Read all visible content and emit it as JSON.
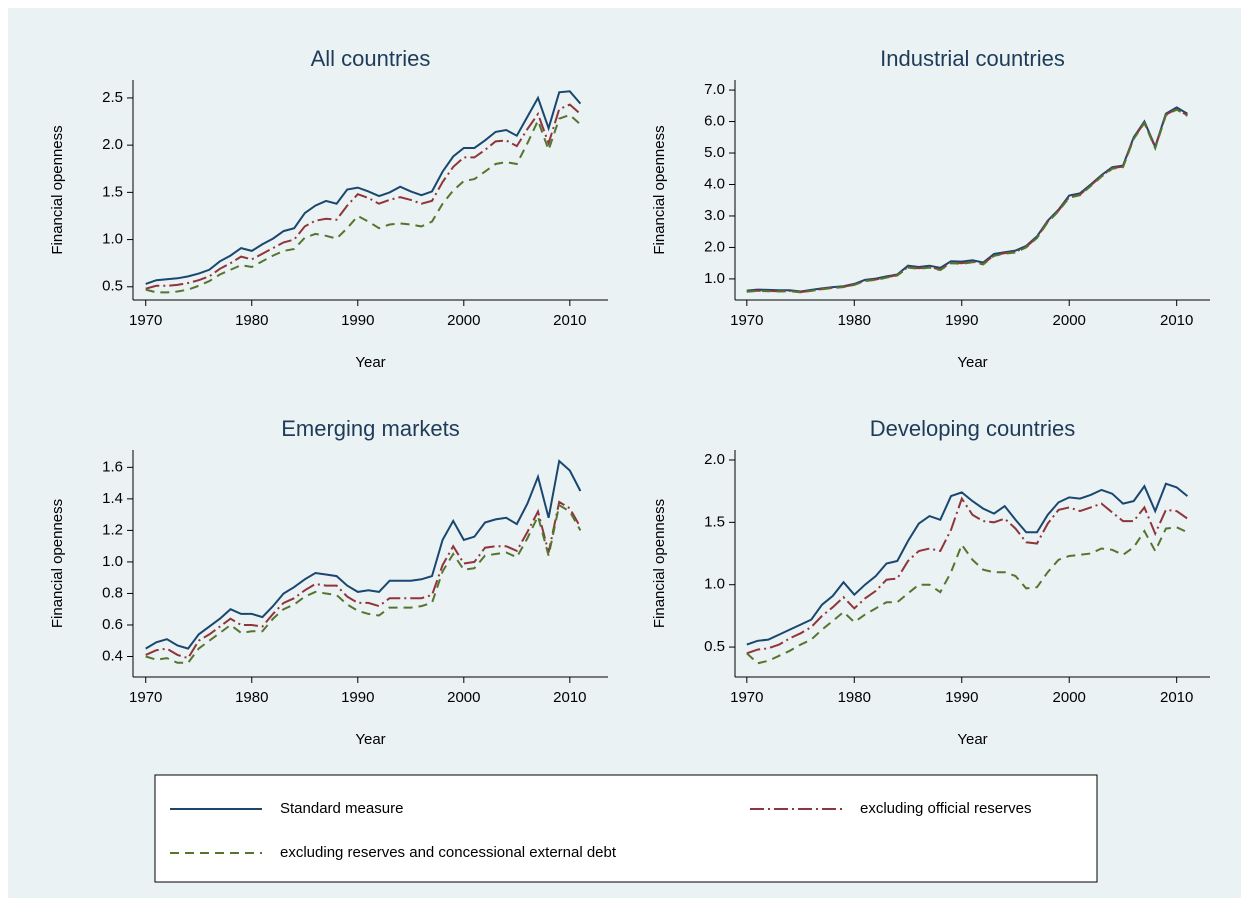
{
  "chart_data": [
    {
      "type": "line",
      "title": "All countries",
      "x_label": "Year",
      "y_label": "Financial openness",
      "x": [
        1970,
        1971,
        1972,
        1973,
        1974,
        1975,
        1976,
        1977,
        1978,
        1979,
        1980,
        1981,
        1982,
        1983,
        1984,
        1985,
        1986,
        1987,
        1988,
        1989,
        1990,
        1991,
        1992,
        1993,
        1994,
        1995,
        1996,
        1997,
        1998,
        1999,
        2000,
        2001,
        2002,
        2003,
        2004,
        2005,
        2006,
        2007,
        2008,
        2009,
        2010,
        2011
      ],
      "xlim": [
        1968.8,
        2013.6
      ],
      "xticks": [
        1970,
        1980,
        1990,
        2000,
        2010
      ],
      "ylim": [
        0.36,
        2.69
      ],
      "yticks": [
        0.5,
        {
          "value": 1,
          "label": "1.0"
        },
        1.5,
        {
          "value": 2,
          "label": "2.0"
        },
        2.5
      ],
      "series": [
        {
          "name": "Standard measure",
          "color": "#1a476f",
          "values": [
            0.53,
            0.57,
            0.58,
            0.59,
            0.61,
            0.64,
            0.68,
            0.77,
            0.83,
            0.91,
            0.88,
            0.95,
            1.01,
            1.09,
            1.12,
            1.28,
            1.36,
            1.41,
            1.38,
            1.53,
            1.55,
            1.51,
            1.46,
            1.5,
            1.56,
            1.51,
            1.47,
            1.51,
            1.72,
            1.88,
            1.97,
            1.97,
            2.05,
            2.14,
            2.16,
            2.1,
            2.3,
            2.5,
            2.18,
            2.56,
            2.57,
            2.44
          ]
        },
        {
          "name": "excluding official reserves",
          "color": "#90353b",
          "values": [
            0.48,
            0.51,
            0.51,
            0.52,
            0.54,
            0.57,
            0.61,
            0.69,
            0.75,
            0.82,
            0.79,
            0.85,
            0.91,
            0.97,
            1.0,
            1.14,
            1.2,
            1.22,
            1.21,
            1.36,
            1.48,
            1.44,
            1.38,
            1.42,
            1.45,
            1.42,
            1.38,
            1.41,
            1.61,
            1.77,
            1.87,
            1.87,
            1.95,
            2.04,
            2.05,
            1.99,
            2.17,
            2.33,
            2.02,
            2.38,
            2.43,
            2.33
          ]
        },
        {
          "name": "excluding reserves and concessional external debt",
          "color": "#55752f",
          "values": [
            0.47,
            0.44,
            0.44,
            0.45,
            0.47,
            0.51,
            0.56,
            0.63,
            0.68,
            0.73,
            0.71,
            0.77,
            0.83,
            0.88,
            0.9,
            1.02,
            1.06,
            1.04,
            1.01,
            1.12,
            1.25,
            1.19,
            1.12,
            1.16,
            1.17,
            1.16,
            1.14,
            1.19,
            1.38,
            1.52,
            1.62,
            1.64,
            1.72,
            1.8,
            1.82,
            1.8,
            2.02,
            2.26,
            1.95,
            2.28,
            2.32,
            2.22
          ]
        }
      ]
    },
    {
      "type": "line",
      "title": "Industrial countries",
      "x_label": "Year",
      "y_label": "Financial openness",
      "x": [
        1970,
        1971,
        1972,
        1973,
        1974,
        1975,
        1976,
        1977,
        1978,
        1979,
        1980,
        1981,
        1982,
        1983,
        1984,
        1985,
        1986,
        1987,
        1988,
        1989,
        1990,
        1991,
        1992,
        1993,
        1994,
        1995,
        1996,
        1997,
        1998,
        1999,
        2000,
        2001,
        2002,
        2003,
        2004,
        2005,
        2006,
        2007,
        2008,
        2009,
        2010,
        2011
      ],
      "xlim": [
        1968.9,
        2013.1
      ],
      "xticks": [
        1970,
        1980,
        1990,
        2000,
        2010
      ],
      "ylim": [
        0.33,
        7.32
      ],
      "yticks": [
        {
          "value": 1,
          "label": "1.0"
        },
        {
          "value": 2,
          "label": "2.0"
        },
        {
          "value": 3,
          "label": "3.0"
        },
        {
          "value": 4,
          "label": "4.0"
        },
        {
          "value": 5,
          "label": "5.0"
        },
        {
          "value": 6,
          "label": "6.0"
        },
        {
          "value": 7,
          "label": "7.0"
        }
      ],
      "series": [
        {
          "color": "#1a476f",
          "values": [
            0.63,
            0.66,
            0.65,
            0.64,
            0.64,
            0.6,
            0.65,
            0.7,
            0.74,
            0.77,
            0.84,
            0.97,
            1.01,
            1.08,
            1.14,
            1.42,
            1.38,
            1.42,
            1.35,
            1.56,
            1.55,
            1.59,
            1.52,
            1.79,
            1.85,
            1.9,
            2.05,
            2.35,
            2.85,
            3.2,
            3.65,
            3.72,
            4.0,
            4.3,
            4.55,
            4.6,
            5.5,
            6.0,
            5.2,
            6.25,
            6.45,
            6.25
          ]
        },
        {
          "color": "#90353b",
          "values": [
            0.6,
            0.63,
            0.62,
            0.61,
            0.62,
            0.58,
            0.63,
            0.68,
            0.72,
            0.75,
            0.82,
            0.94,
            0.98,
            1.05,
            1.12,
            1.38,
            1.34,
            1.38,
            1.3,
            1.52,
            1.5,
            1.55,
            1.48,
            1.75,
            1.82,
            1.86,
            2.02,
            2.32,
            2.82,
            3.17,
            3.6,
            3.68,
            3.97,
            4.27,
            4.52,
            4.57,
            5.47,
            5.97,
            5.17,
            6.22,
            6.4,
            6.2
          ]
        },
        {
          "color": "#55752f",
          "values": [
            0.59,
            0.62,
            0.61,
            0.6,
            0.61,
            0.57,
            0.62,
            0.67,
            0.71,
            0.74,
            0.81,
            0.93,
            0.97,
            1.04,
            1.11,
            1.36,
            1.32,
            1.36,
            1.28,
            1.5,
            1.48,
            1.53,
            1.46,
            1.73,
            1.8,
            1.84,
            2.0,
            2.3,
            2.8,
            3.15,
            3.58,
            3.66,
            3.95,
            4.25,
            4.5,
            4.55,
            5.45,
            5.95,
            5.15,
            6.2,
            6.38,
            6.18
          ]
        }
      ]
    },
    {
      "type": "line",
      "title": "Emerging markets",
      "x_label": "Year",
      "y_label": "Financial openness",
      "x": [
        1970,
        1971,
        1972,
        1973,
        1974,
        1975,
        1976,
        1977,
        1978,
        1979,
        1980,
        1981,
        1982,
        1983,
        1984,
        1985,
        1986,
        1987,
        1988,
        1989,
        1990,
        1991,
        1992,
        1993,
        1994,
        1995,
        1996,
        1997,
        1998,
        1999,
        2000,
        2001,
        2002,
        2003,
        2004,
        2005,
        2006,
        2007,
        2008,
        2009,
        2010,
        2011
      ],
      "xlim": [
        1968.8,
        2013.6
      ],
      "xticks": [
        1970,
        1980,
        1990,
        2000,
        2010
      ],
      "ylim": [
        0.27,
        1.71
      ],
      "yticks": [
        0.4,
        0.6,
        0.8,
        {
          "value": 1,
          "label": "1.0"
        },
        1.2,
        1.4,
        1.6
      ],
      "series": [
        {
          "color": "#1a476f",
          "values": [
            0.45,
            0.49,
            0.51,
            0.47,
            0.45,
            0.54,
            0.59,
            0.64,
            0.7,
            0.67,
            0.67,
            0.65,
            0.72,
            0.8,
            0.84,
            0.89,
            0.93,
            0.92,
            0.91,
            0.85,
            0.81,
            0.82,
            0.81,
            0.88,
            0.88,
            0.88,
            0.89,
            0.91,
            1.14,
            1.26,
            1.14,
            1.16,
            1.25,
            1.27,
            1.28,
            1.24,
            1.37,
            1.54,
            1.28,
            1.64,
            1.58,
            1.45
          ]
        },
        {
          "color": "#90353b",
          "values": [
            0.41,
            0.44,
            0.45,
            0.41,
            0.39,
            0.5,
            0.54,
            0.59,
            0.64,
            0.6,
            0.6,
            0.59,
            0.67,
            0.74,
            0.77,
            0.82,
            0.86,
            0.85,
            0.85,
            0.78,
            0.74,
            0.74,
            0.72,
            0.77,
            0.77,
            0.77,
            0.77,
            0.79,
            0.98,
            1.1,
            0.99,
            1.0,
            1.09,
            1.1,
            1.1,
            1.07,
            1.19,
            1.32,
            1.06,
            1.38,
            1.34,
            1.22
          ]
        },
        {
          "color": "#55752f",
          "values": [
            0.4,
            0.38,
            0.39,
            0.36,
            0.36,
            0.45,
            0.5,
            0.55,
            0.6,
            0.55,
            0.56,
            0.56,
            0.64,
            0.7,
            0.73,
            0.78,
            0.81,
            0.8,
            0.79,
            0.73,
            0.69,
            0.67,
            0.66,
            0.71,
            0.71,
            0.71,
            0.72,
            0.74,
            0.94,
            1.05,
            0.95,
            0.96,
            1.04,
            1.05,
            1.06,
            1.03,
            1.15,
            1.29,
            1.04,
            1.36,
            1.32,
            1.2
          ]
        }
      ]
    },
    {
      "type": "line",
      "title": "Developing countries",
      "x_label": "Year",
      "y_label": "Financial openness",
      "x": [
        1970,
        1971,
        1972,
        1973,
        1974,
        1975,
        1976,
        1977,
        1978,
        1979,
        1980,
        1981,
        1982,
        1983,
        1984,
        1985,
        1986,
        1987,
        1988,
        1989,
        1990,
        1991,
        1992,
        1993,
        1994,
        1995,
        1996,
        1997,
        1998,
        1999,
        2000,
        2001,
        2002,
        2003,
        2004,
        2005,
        2006,
        2007,
        2008,
        2009,
        2010,
        2011
      ],
      "xlim": [
        1968.9,
        2013.1
      ],
      "xticks": [
        1970,
        1980,
        1990,
        2000,
        2010
      ],
      "ylim": [
        0.26,
        2.08
      ],
      "yticks": [
        0.5,
        {
          "value": 1,
          "label": "1.0"
        },
        1.5,
        {
          "value": 2,
          "label": "2.0"
        }
      ],
      "series": [
        {
          "color": "#1a476f",
          "values": [
            0.52,
            0.55,
            0.56,
            0.6,
            0.64,
            0.68,
            0.72,
            0.84,
            0.91,
            1.02,
            0.92,
            1.0,
            1.07,
            1.17,
            1.19,
            1.35,
            1.49,
            1.55,
            1.52,
            1.71,
            1.74,
            1.67,
            1.61,
            1.57,
            1.63,
            1.52,
            1.42,
            1.42,
            1.56,
            1.66,
            1.7,
            1.69,
            1.72,
            1.76,
            1.73,
            1.65,
            1.67,
            1.79,
            1.59,
            1.81,
            1.78,
            1.71
          ]
        },
        {
          "color": "#90353b",
          "values": [
            0.45,
            0.48,
            0.49,
            0.52,
            0.57,
            0.61,
            0.66,
            0.75,
            0.82,
            0.9,
            0.81,
            0.89,
            0.95,
            1.04,
            1.05,
            1.19,
            1.27,
            1.29,
            1.27,
            1.44,
            1.69,
            1.56,
            1.51,
            1.5,
            1.53,
            1.45,
            1.34,
            1.33,
            1.49,
            1.6,
            1.62,
            1.59,
            1.62,
            1.65,
            1.58,
            1.51,
            1.51,
            1.62,
            1.41,
            1.6,
            1.59,
            1.53
          ]
        },
        {
          "color": "#55752f",
          "values": [
            0.45,
            0.37,
            0.39,
            0.43,
            0.47,
            0.52,
            0.56,
            0.64,
            0.71,
            0.78,
            0.7,
            0.76,
            0.81,
            0.86,
            0.86,
            0.93,
            1.0,
            1.0,
            0.94,
            1.1,
            1.32,
            1.2,
            1.12,
            1.1,
            1.1,
            1.07,
            0.97,
            0.98,
            1.1,
            1.2,
            1.23,
            1.24,
            1.25,
            1.29,
            1.28,
            1.24,
            1.3,
            1.43,
            1.27,
            1.45,
            1.46,
            1.42
          ]
        }
      ]
    }
  ]
}
